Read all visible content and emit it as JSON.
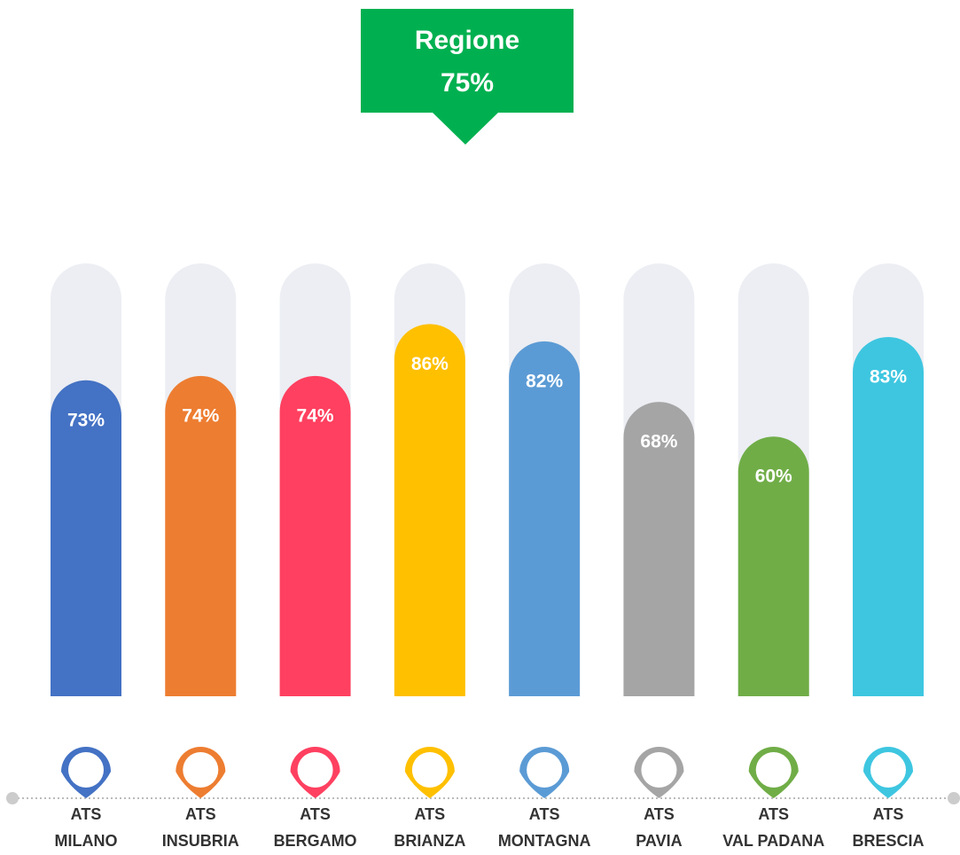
{
  "chart_data": {
    "type": "bar",
    "annotation": [
      "Regione",
      "75%"
    ],
    "categories": [
      "ATS\nMILANO",
      "ATS\nINSUBRIA",
      "ATS\nBERGAMO",
      "ATS\nBRIANZA",
      "ATS\nMONTAGNA",
      "ATS\nPAVIA",
      "ATS\nVAL PADANA",
      "ATS\nBRESCIA"
    ],
    "values": [
      73,
      74,
      74,
      86,
      82,
      68,
      60,
      83
    ],
    "value_labels": [
      "73%",
      "74%",
      "74%",
      "86%",
      "82%",
      "68%",
      "60%",
      "83%"
    ],
    "colors": [
      "#4472c4",
      "#ed7d31",
      "#ff4060",
      "#ffc000",
      "#5b9bd5",
      "#a5a5a5",
      "#70ad47",
      "#3ec6e0"
    ],
    "ylim": [
      0,
      100
    ]
  }
}
